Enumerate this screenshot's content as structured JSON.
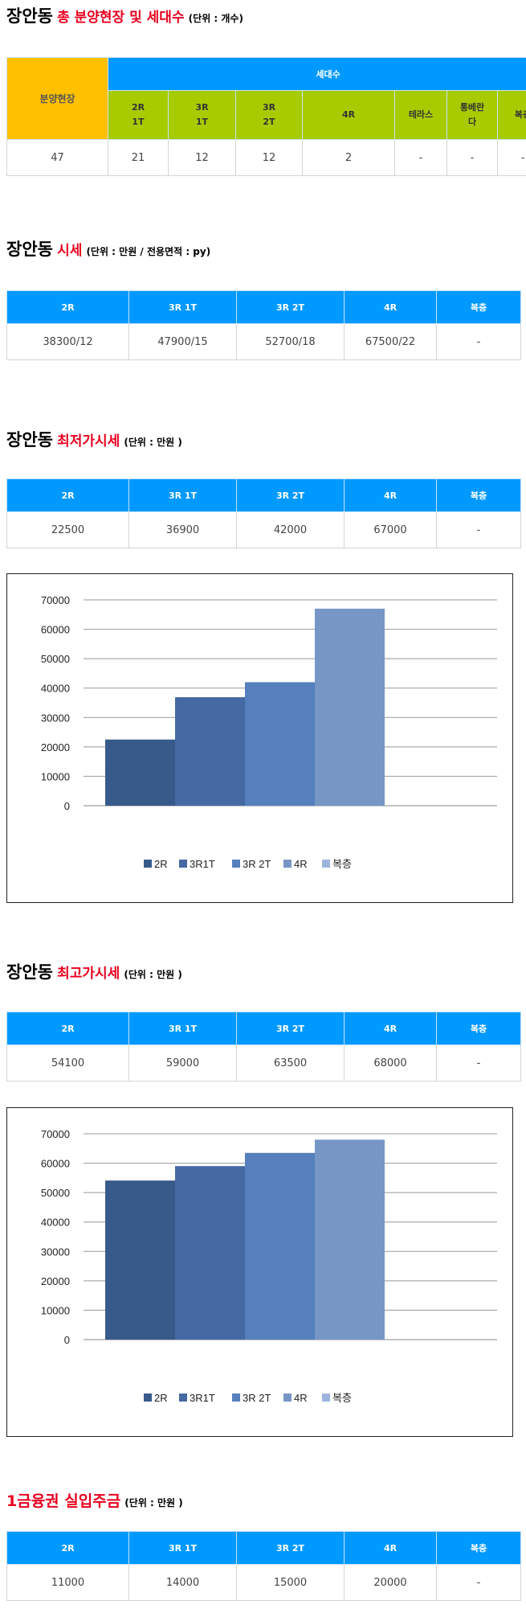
{
  "section1": {
    "title_main": "장안동",
    "title_red": "총 분양현장 및 세대수",
    "title_unit": "(단위 : 개수)",
    "table": {
      "site_header": "분양현장",
      "units_header": "세대수",
      "columns": [
        "2R\n1T",
        "3R\n1T",
        "3R\n2T",
        "4R",
        "테라스",
        "통베란\n다",
        "복층"
      ],
      "site_value": "47",
      "values": [
        "21",
        "12",
        "12",
        "2",
        "-",
        "-",
        "-"
      ]
    }
  },
  "section2": {
    "title_main": "장안동",
    "title_red": "시세",
    "title_unit": "(단위 : 만원 / 전용면적 : py)",
    "columns": [
      "2R",
      "3R 1T",
      "3R 2T",
      "4R",
      "복층"
    ],
    "values": [
      "38300/12",
      "47900/15",
      "52700/18",
      "67500/22",
      "-"
    ]
  },
  "section3": {
    "title_main": "장안동",
    "title_red": "최저가시세",
    "title_unit": "(단위 : 만원 )",
    "columns": [
      "2R",
      "3R 1T",
      "3R 2T",
      "4R",
      "복층"
    ],
    "values": [
      "22500",
      "36900",
      "42000",
      "67000",
      "-"
    ]
  },
  "section4": {
    "title_main": "장안동",
    "title_red": "최고가시세",
    "title_unit": "(단위 : 만원 )",
    "columns": [
      "2R",
      "3R 1T",
      "3R 2T",
      "4R",
      "복층"
    ],
    "values": [
      "54100",
      "59000",
      "63500",
      "68000",
      "-"
    ]
  },
  "section5": {
    "title_red": "1금융권 실입주금",
    "title_unit": "(단위 : 만원 )",
    "columns": [
      "2R",
      "3R 1T",
      "3R 2T",
      "4R",
      "복층"
    ],
    "values": [
      "11000",
      "14000",
      "15000",
      "20000",
      "-"
    ]
  },
  "colors": {
    "header_blue": "#0099ff",
    "site_orange": "#ffc000",
    "sub_green": "#a6cc00",
    "title_red": "#e8001e",
    "series": [
      "#385a8a",
      "#4469a3",
      "#5580bd",
      "#7696c6",
      "#9db5dc"
    ]
  },
  "chart_data": [
    {
      "type": "bar",
      "categories": [
        "2R",
        "3R1T",
        "3R 2T",
        "4R",
        "복층"
      ],
      "values": [
        22500,
        36900,
        42000,
        67000,
        0
      ],
      "ylim": [
        0,
        70000
      ],
      "yticks": [
        0,
        10000,
        20000,
        30000,
        40000,
        50000,
        60000,
        70000
      ],
      "grid": true,
      "legend": "bottom"
    },
    {
      "type": "bar",
      "categories": [
        "2R",
        "3R1T",
        "3R 2T",
        "4R",
        "복층"
      ],
      "values": [
        54100,
        59000,
        63500,
        68000,
        0
      ],
      "ylim": [
        0,
        70000
      ],
      "yticks": [
        0,
        10000,
        20000,
        30000,
        40000,
        50000,
        60000,
        70000
      ],
      "grid": true,
      "legend": "bottom"
    }
  ]
}
